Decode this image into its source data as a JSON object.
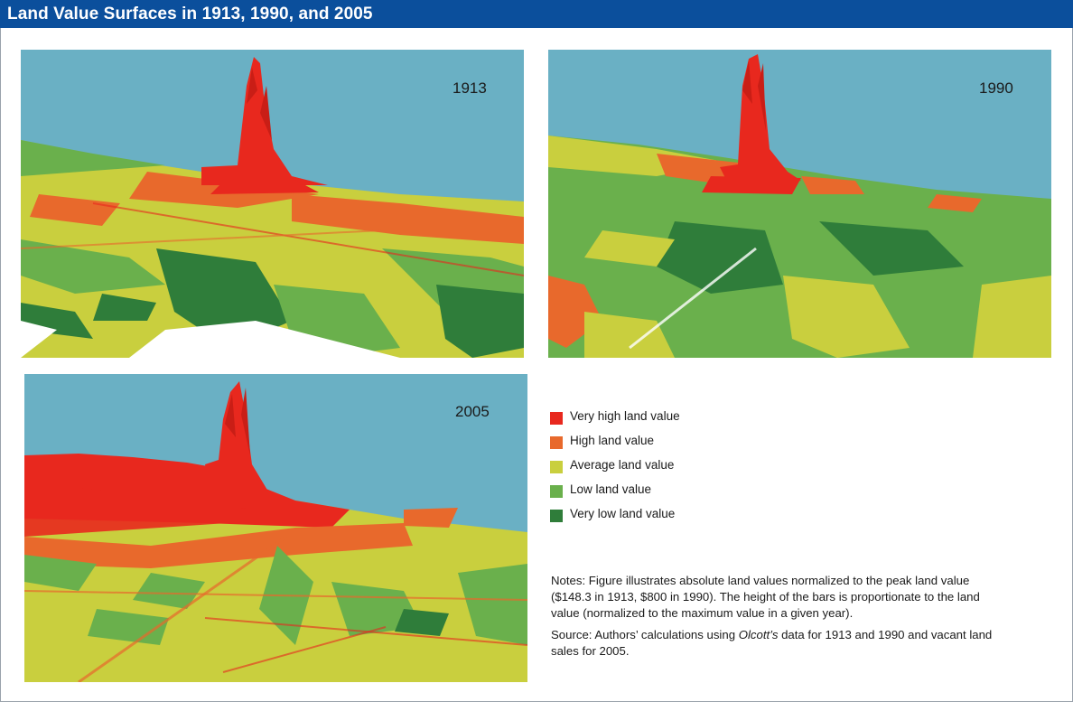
{
  "header": {
    "title": "Land Value Surfaces in 1913, 1990, and 2005"
  },
  "panels": [
    {
      "year": "1913"
    },
    {
      "year": "1990"
    },
    {
      "year": "2005"
    }
  ],
  "colors": {
    "sky": "#6ab0c4",
    "very_high": "#e8281e",
    "high": "#e8692c",
    "average": "#c9cf3e",
    "low": "#6ab04c",
    "very_low": "#2f7d3a",
    "header_bg": "#0b4f9c"
  },
  "legend": {
    "items": [
      {
        "label": "Very high land value",
        "color": "#e8281e"
      },
      {
        "label": "High land value",
        "color": "#e8692c"
      },
      {
        "label": "Average land value",
        "color": "#c9cf3e"
      },
      {
        "label": "Low land value",
        "color": "#6ab04c"
      },
      {
        "label": "Very low land value",
        "color": "#2f7d3a"
      }
    ]
  },
  "notes": {
    "notes_text": "Notes: Figure illustrates absolute land values normalized to the peak land value ($148.3 in 1913, $800 in 1990). The height of the bars is proportionate to the land value (normalized to the maximum value in a given year).",
    "source_prefix": "Source: Authors’ calculations using ",
    "source_italic": "Olcott’s",
    "source_suffix": " data for 1913 and 1990 and vacant land sales for 2005."
  }
}
